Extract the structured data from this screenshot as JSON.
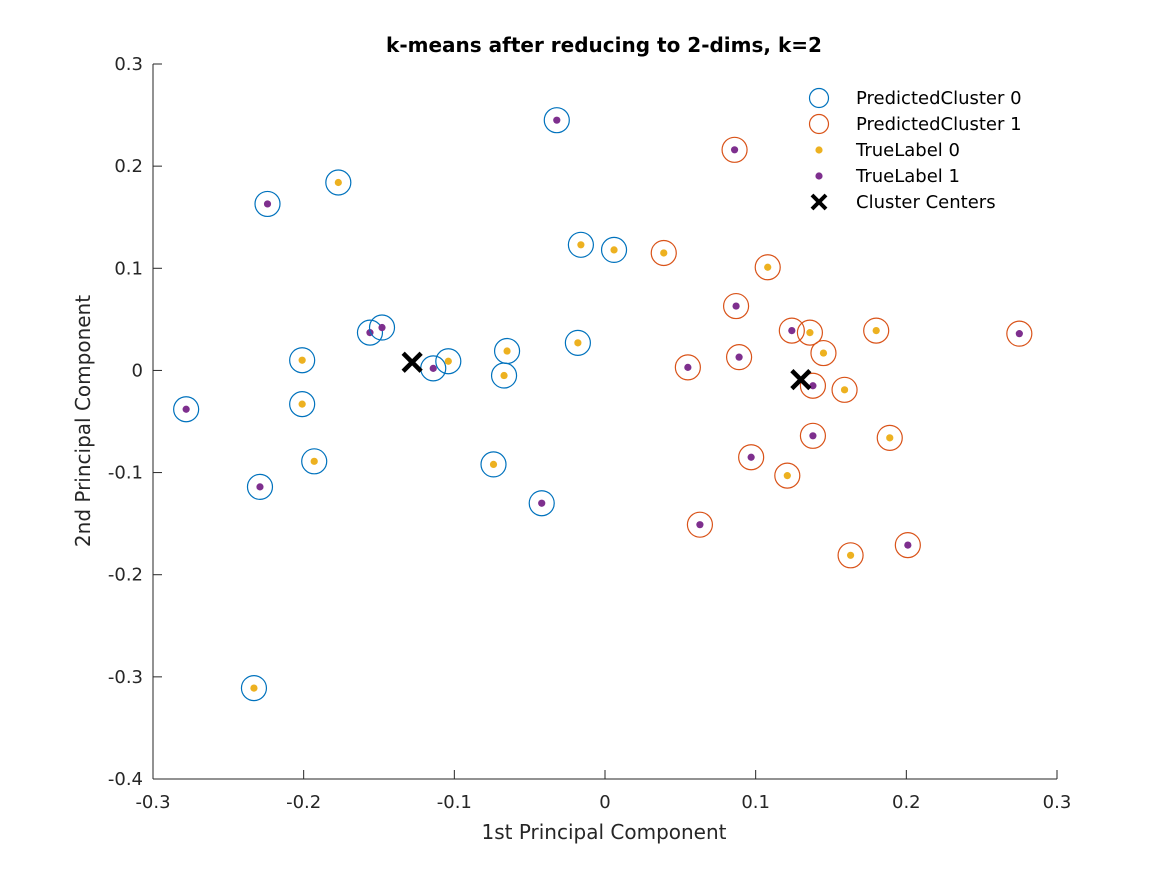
{
  "chart_data": {
    "type": "scatter",
    "title": "k-means after reducing to 2-dims, k=2",
    "xlabel": "1st Principal Component",
    "ylabel": "2nd Principal Component",
    "xlim": [
      -0.3,
      0.3
    ],
    "ylim": [
      -0.4,
      0.3
    ],
    "xticks": [
      -0.3,
      -0.2,
      -0.1,
      0,
      0.1,
      0.2,
      0.3
    ],
    "xtick_labels": [
      "-0.3",
      "-0.2",
      "-0.1",
      "0",
      "0.1",
      "0.2",
      "0.3"
    ],
    "yticks": [
      -0.4,
      -0.3,
      -0.2,
      -0.1,
      0,
      0.1,
      0.2,
      0.3
    ],
    "ytick_labels": [
      "-0.4",
      "-0.3",
      "-0.2",
      "-0.1",
      "0",
      "0.1",
      "0.2",
      "0.3"
    ],
    "grid": false,
    "legend_position": "top-right",
    "legend": [
      {
        "label": "PredictedCluster 0",
        "marker": "circle-open",
        "color": "#0072BD"
      },
      {
        "label": "PredictedCluster 1",
        "marker": "circle-open",
        "color": "#D95319"
      },
      {
        "label": "TrueLabel 0",
        "marker": "dot",
        "color": "#EDB120"
      },
      {
        "label": "TrueLabel 1",
        "marker": "dot",
        "color": "#7E2F8E"
      },
      {
        "label": "Cluster Centers",
        "marker": "x",
        "color": "#000000"
      }
    ],
    "points": [
      {
        "x": -0.278,
        "y": -0.038,
        "cluster": 0,
        "label": 1
      },
      {
        "x": -0.224,
        "y": 0.163,
        "cluster": 0,
        "label": 1
      },
      {
        "x": -0.229,
        "y": -0.114,
        "cluster": 0,
        "label": 1
      },
      {
        "x": -0.233,
        "y": -0.311,
        "cluster": 0,
        "label": 0
      },
      {
        "x": -0.201,
        "y": 0.01,
        "cluster": 0,
        "label": 0
      },
      {
        "x": -0.201,
        "y": -0.033,
        "cluster": 0,
        "label": 0
      },
      {
        "x": -0.193,
        "y": -0.089,
        "cluster": 0,
        "label": 0
      },
      {
        "x": -0.177,
        "y": 0.184,
        "cluster": 0,
        "label": 0
      },
      {
        "x": -0.156,
        "y": 0.037,
        "cluster": 0,
        "label": 1
      },
      {
        "x": -0.148,
        "y": 0.042,
        "cluster": 0,
        "label": 1
      },
      {
        "x": -0.114,
        "y": 0.002,
        "cluster": 0,
        "label": 1
      },
      {
        "x": -0.104,
        "y": 0.009,
        "cluster": 0,
        "label": 0
      },
      {
        "x": -0.074,
        "y": -0.092,
        "cluster": 0,
        "label": 0
      },
      {
        "x": -0.067,
        "y": -0.005,
        "cluster": 0,
        "label": 0
      },
      {
        "x": -0.065,
        "y": 0.019,
        "cluster": 0,
        "label": 0
      },
      {
        "x": -0.042,
        "y": -0.13,
        "cluster": 0,
        "label": 1
      },
      {
        "x": -0.032,
        "y": 0.245,
        "cluster": 0,
        "label": 1
      },
      {
        "x": -0.018,
        "y": 0.027,
        "cluster": 0,
        "label": 0
      },
      {
        "x": -0.016,
        "y": 0.123,
        "cluster": 0,
        "label": 0
      },
      {
        "x": 0.006,
        "y": 0.118,
        "cluster": 0,
        "label": 0
      },
      {
        "x": 0.039,
        "y": 0.115,
        "cluster": 1,
        "label": 0
      },
      {
        "x": 0.055,
        "y": 0.003,
        "cluster": 1,
        "label": 1
      },
      {
        "x": 0.063,
        "y": -0.151,
        "cluster": 1,
        "label": 1
      },
      {
        "x": 0.086,
        "y": 0.216,
        "cluster": 1,
        "label": 1
      },
      {
        "x": 0.087,
        "y": 0.063,
        "cluster": 1,
        "label": 1
      },
      {
        "x": 0.089,
        "y": 0.013,
        "cluster": 1,
        "label": 1
      },
      {
        "x": 0.097,
        "y": -0.085,
        "cluster": 1,
        "label": 1
      },
      {
        "x": 0.108,
        "y": 0.101,
        "cluster": 1,
        "label": 0
      },
      {
        "x": 0.121,
        "y": -0.103,
        "cluster": 1,
        "label": 0
      },
      {
        "x": 0.124,
        "y": 0.039,
        "cluster": 1,
        "label": 1
      },
      {
        "x": 0.136,
        "y": 0.037,
        "cluster": 1,
        "label": 0
      },
      {
        "x": 0.138,
        "y": -0.015,
        "cluster": 1,
        "label": 1
      },
      {
        "x": 0.138,
        "y": -0.064,
        "cluster": 1,
        "label": 1
      },
      {
        "x": 0.145,
        "y": 0.017,
        "cluster": 1,
        "label": 0
      },
      {
        "x": 0.159,
        "y": -0.019,
        "cluster": 1,
        "label": 0
      },
      {
        "x": 0.163,
        "y": -0.181,
        "cluster": 1,
        "label": 0
      },
      {
        "x": 0.18,
        "y": 0.039,
        "cluster": 1,
        "label": 0
      },
      {
        "x": 0.189,
        "y": -0.066,
        "cluster": 1,
        "label": 0
      },
      {
        "x": 0.201,
        "y": -0.171,
        "cluster": 1,
        "label": 1
      },
      {
        "x": 0.275,
        "y": 0.036,
        "cluster": 1,
        "label": 1
      }
    ],
    "centers": [
      {
        "x": -0.128,
        "y": 0.008
      },
      {
        "x": 0.13,
        "y": -0.009
      }
    ]
  },
  "colors": {
    "cluster0": "#0072BD",
    "cluster1": "#D95319",
    "label0": "#EDB120",
    "label1": "#7E2F8E",
    "center": "#000000",
    "axis": "#262626"
  }
}
